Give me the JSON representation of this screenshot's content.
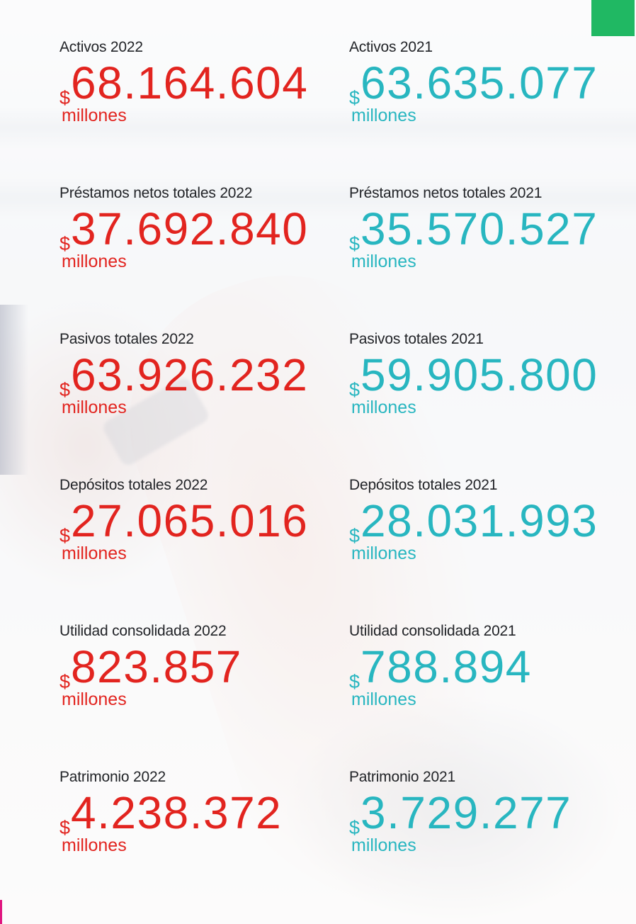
{
  "accent_colors": {
    "red": "#e2241f",
    "teal": "#28b6c0",
    "green": "#20b863",
    "pink": "#e0157f"
  },
  "stats": [
    {
      "label": "Activos 2022",
      "currency": "$",
      "value": "68.164.604",
      "unit": "millones"
    },
    {
      "label": "Activos 2021",
      "currency": "$",
      "value": "63.635.077",
      "unit": "millones"
    },
    {
      "label": "Préstamos netos totales 2022",
      "currency": "$",
      "value": "37.692.840",
      "unit": "millones"
    },
    {
      "label": "Préstamos netos totales 2021",
      "currency": "$",
      "value": "35.570.527",
      "unit": "millones"
    },
    {
      "label": "Pasivos totales 2022",
      "currency": "$",
      "value": "63.926.232",
      "unit": "millones"
    },
    {
      "label": "Pasivos totales 2021",
      "currency": "$",
      "value": "59.905.800",
      "unit": "millones"
    },
    {
      "label": "Depósitos totales 2022",
      "currency": "$",
      "value": "27.065.016",
      "unit": "millones"
    },
    {
      "label": "Depósitos totales 2021",
      "currency": "$",
      "value": "28.031.993",
      "unit": "millones"
    },
    {
      "label": "Utilidad consolidada 2022",
      "currency": "$",
      "value": "823.857",
      "unit": "millones"
    },
    {
      "label": "Utilidad consolidada 2021",
      "currency": "$",
      "value": "788.894",
      "unit": "millones"
    },
    {
      "label": "Patrimonio 2022",
      "currency": "$",
      "value": "4.238.372",
      "unit": "millones"
    },
    {
      "label": "Patrimonio 2021",
      "currency": "$",
      "value": "3.729.277",
      "unit": "millones"
    }
  ]
}
